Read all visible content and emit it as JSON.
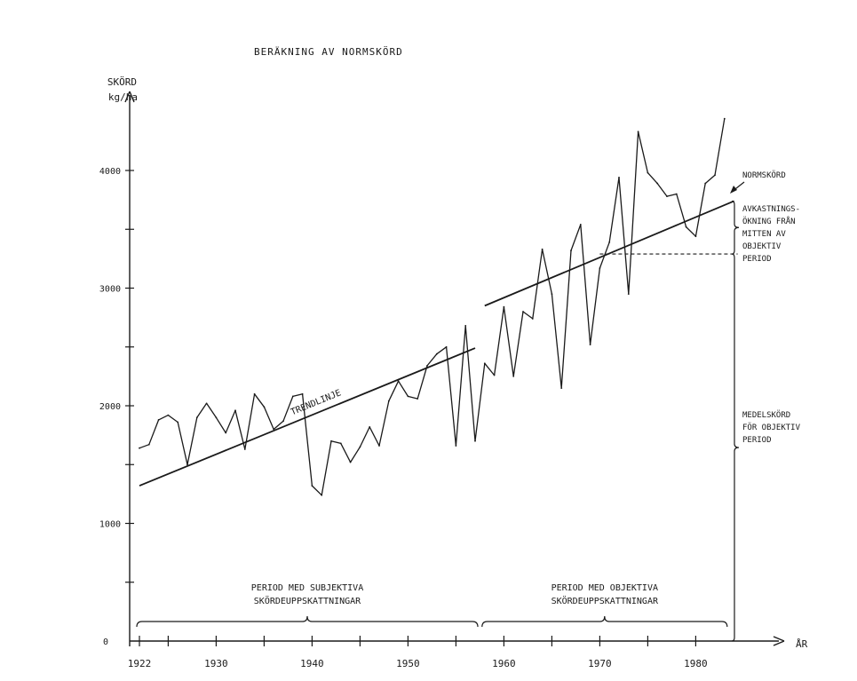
{
  "chart_data": {
    "type": "line",
    "title": "BERÄKNING AV NORMSKÖRD",
    "ylabel": "SKÖRD",
    "yunit": "kg/ha",
    "xlabel": "ÅR",
    "xlim": [
      1920,
      1984
    ],
    "ylim": [
      0,
      4500
    ],
    "x_tick_labels": [
      "1922",
      "1930",
      "1940",
      "1950",
      "1960",
      "1970",
      "1980"
    ],
    "x_ticks": [
      1922,
      1930,
      1940,
      1950,
      1960,
      1970,
      1980
    ],
    "y_tick_labels": [
      "0",
      "1000",
      "2000",
      "3000",
      "4000"
    ],
    "y_ticks": [
      0,
      1000,
      2000,
      3000,
      4000
    ],
    "grid": false,
    "series": [
      {
        "x": [
          1922,
          1923,
          1924,
          1925,
          1926,
          1927,
          1928,
          1929,
          1930,
          1931,
          1932,
          1933,
          1934,
          1935,
          1936,
          1937,
          1938,
          1939,
          1940,
          1941,
          1942,
          1943,
          1944,
          1945,
          1946,
          1947,
          1948,
          1949,
          1950,
          1951,
          1952,
          1953,
          1954,
          1955,
          1956,
          1957,
          1958,
          1959,
          1960,
          1961,
          1962,
          1963,
          1964,
          1965,
          1966,
          1967,
          1968,
          1969,
          1970,
          1971,
          1972,
          1973,
          1974,
          1975,
          1976,
          1977,
          1978,
          1979,
          1980,
          1981,
          1982,
          1983
        ],
        "values": [
          1640,
          1670,
          1880,
          1920,
          1860,
          1500,
          1900,
          2020,
          1900,
          1770,
          1960,
          1630,
          2100,
          1990,
          1800,
          1870,
          2080,
          2100,
          1320,
          1240,
          1700,
          1680,
          1520,
          1650,
          1820,
          1660,
          2040,
          2210,
          2080,
          2060,
          2340,
          2440,
          2500,
          1660,
          2680,
          1700,
          2360,
          2260,
          2840,
          2250,
          2800,
          2740,
          3330,
          2950,
          2150,
          3320,
          3540,
          2520,
          3170,
          3390,
          3940,
          2950,
          4330,
          3980,
          3890,
          3780,
          3800,
          3520,
          3440,
          3890,
          3960,
          4440
        ]
      }
    ],
    "trend_lines": [
      {
        "label": "TRENDLINJE",
        "x": [
          1922,
          1957
        ],
        "values": [
          1320,
          2490
        ]
      },
      {
        "label": "NORMSKÖRD",
        "x": [
          1958,
          1984
        ],
        "values": [
          2850,
          3740
        ]
      }
    ],
    "reference_level": {
      "x": [
        1970,
        1984
      ],
      "value": 3290
    },
    "periods": [
      {
        "label_line1": "PERIOD MED SUBJEKTIVA",
        "label_line2": "SKÖRDEUPPSKATTNINGAR",
        "x": [
          1922,
          1957
        ]
      },
      {
        "label_line1": "PERIOD MED OBJEKTIVA",
        "label_line2": "SKÖRDEUPPSKATTNINGAR",
        "x": [
          1958,
          1983
        ]
      }
    ],
    "annotations": {
      "normskord": "NORMSKÖRD",
      "trendlinje": "TRENDLINJE",
      "avkastning": [
        "AVKASTNINGS-",
        "ÖKNING FRÅN",
        "MITTEN AV",
        "OBJEKTIV",
        "PERIOD"
      ],
      "medelskord": [
        "MEDELSKÖRD",
        "FÖR OBJEKTIV",
        "PERIOD"
      ]
    }
  }
}
